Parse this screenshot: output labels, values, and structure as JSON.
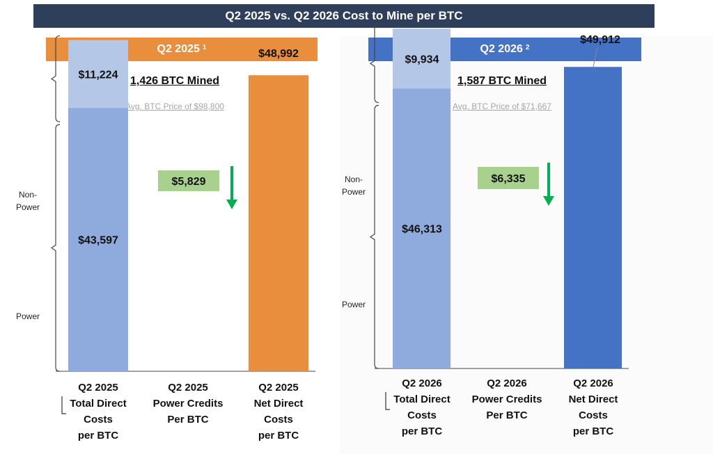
{
  "title": "Q2 2025 vs. Q2 2026 Cost to Mine per BTC",
  "colors": {
    "title_bg": "#2e3f5c",
    "q2_2025_accent": "#e98e3c",
    "q2_2026_accent": "#4472c4",
    "power": "#8faadc",
    "non_power": "#b4c7e7",
    "credit_box": "#a9d18e",
    "arrow": "#00b050"
  },
  "chart_data": [
    {
      "type": "bar",
      "header": "Q2 2025",
      "header_sup": "1",
      "btc_mined": "1,426 BTC Mined",
      "avg_price": "Avg. BTC Price of $98,800",
      "side_labels": {
        "non_power": [
          "Non-",
          "Power"
        ],
        "power": "Power"
      },
      "categories": [
        [
          "Q2 2025",
          "Total Direct",
          "Costs",
          "per BTC"
        ],
        [
          "Q2 2025",
          "Power Credits",
          "Per BTC"
        ],
        [
          "Q2 2025",
          "Net Direct",
          "Costs",
          "per BTC"
        ]
      ],
      "total_direct": {
        "power": 43597,
        "non_power": 11224,
        "power_label": "$43,597",
        "non_power_label": "$11,224"
      },
      "power_credits": {
        "value": 5829,
        "label": "$5,829"
      },
      "net_direct": {
        "value": 48992,
        "label": "$48,992"
      }
    },
    {
      "type": "bar",
      "header": "Q2 2026",
      "header_sup": "2",
      "btc_mined": "1,587 BTC Mined",
      "avg_price": "Avg. BTC Price of $71,667",
      "side_labels": {
        "non_power": [
          "Non-",
          "Power"
        ],
        "power": "Power"
      },
      "categories": [
        [
          "Q2 2026",
          "Total Direct",
          "Costs",
          "per BTC"
        ],
        [
          "Q2 2026",
          "Power Credits",
          "Per BTC"
        ],
        [
          "Q2 2026",
          "Net Direct",
          "Costs",
          "per BTC"
        ]
      ],
      "total_direct": {
        "power": 46313,
        "non_power": 9934,
        "power_label": "$46,313",
        "non_power_label": "$9,934"
      },
      "power_credits": {
        "value": 6335,
        "label": "$6,335"
      },
      "net_direct": {
        "value": 49912,
        "label": "$49,912"
      }
    }
  ]
}
